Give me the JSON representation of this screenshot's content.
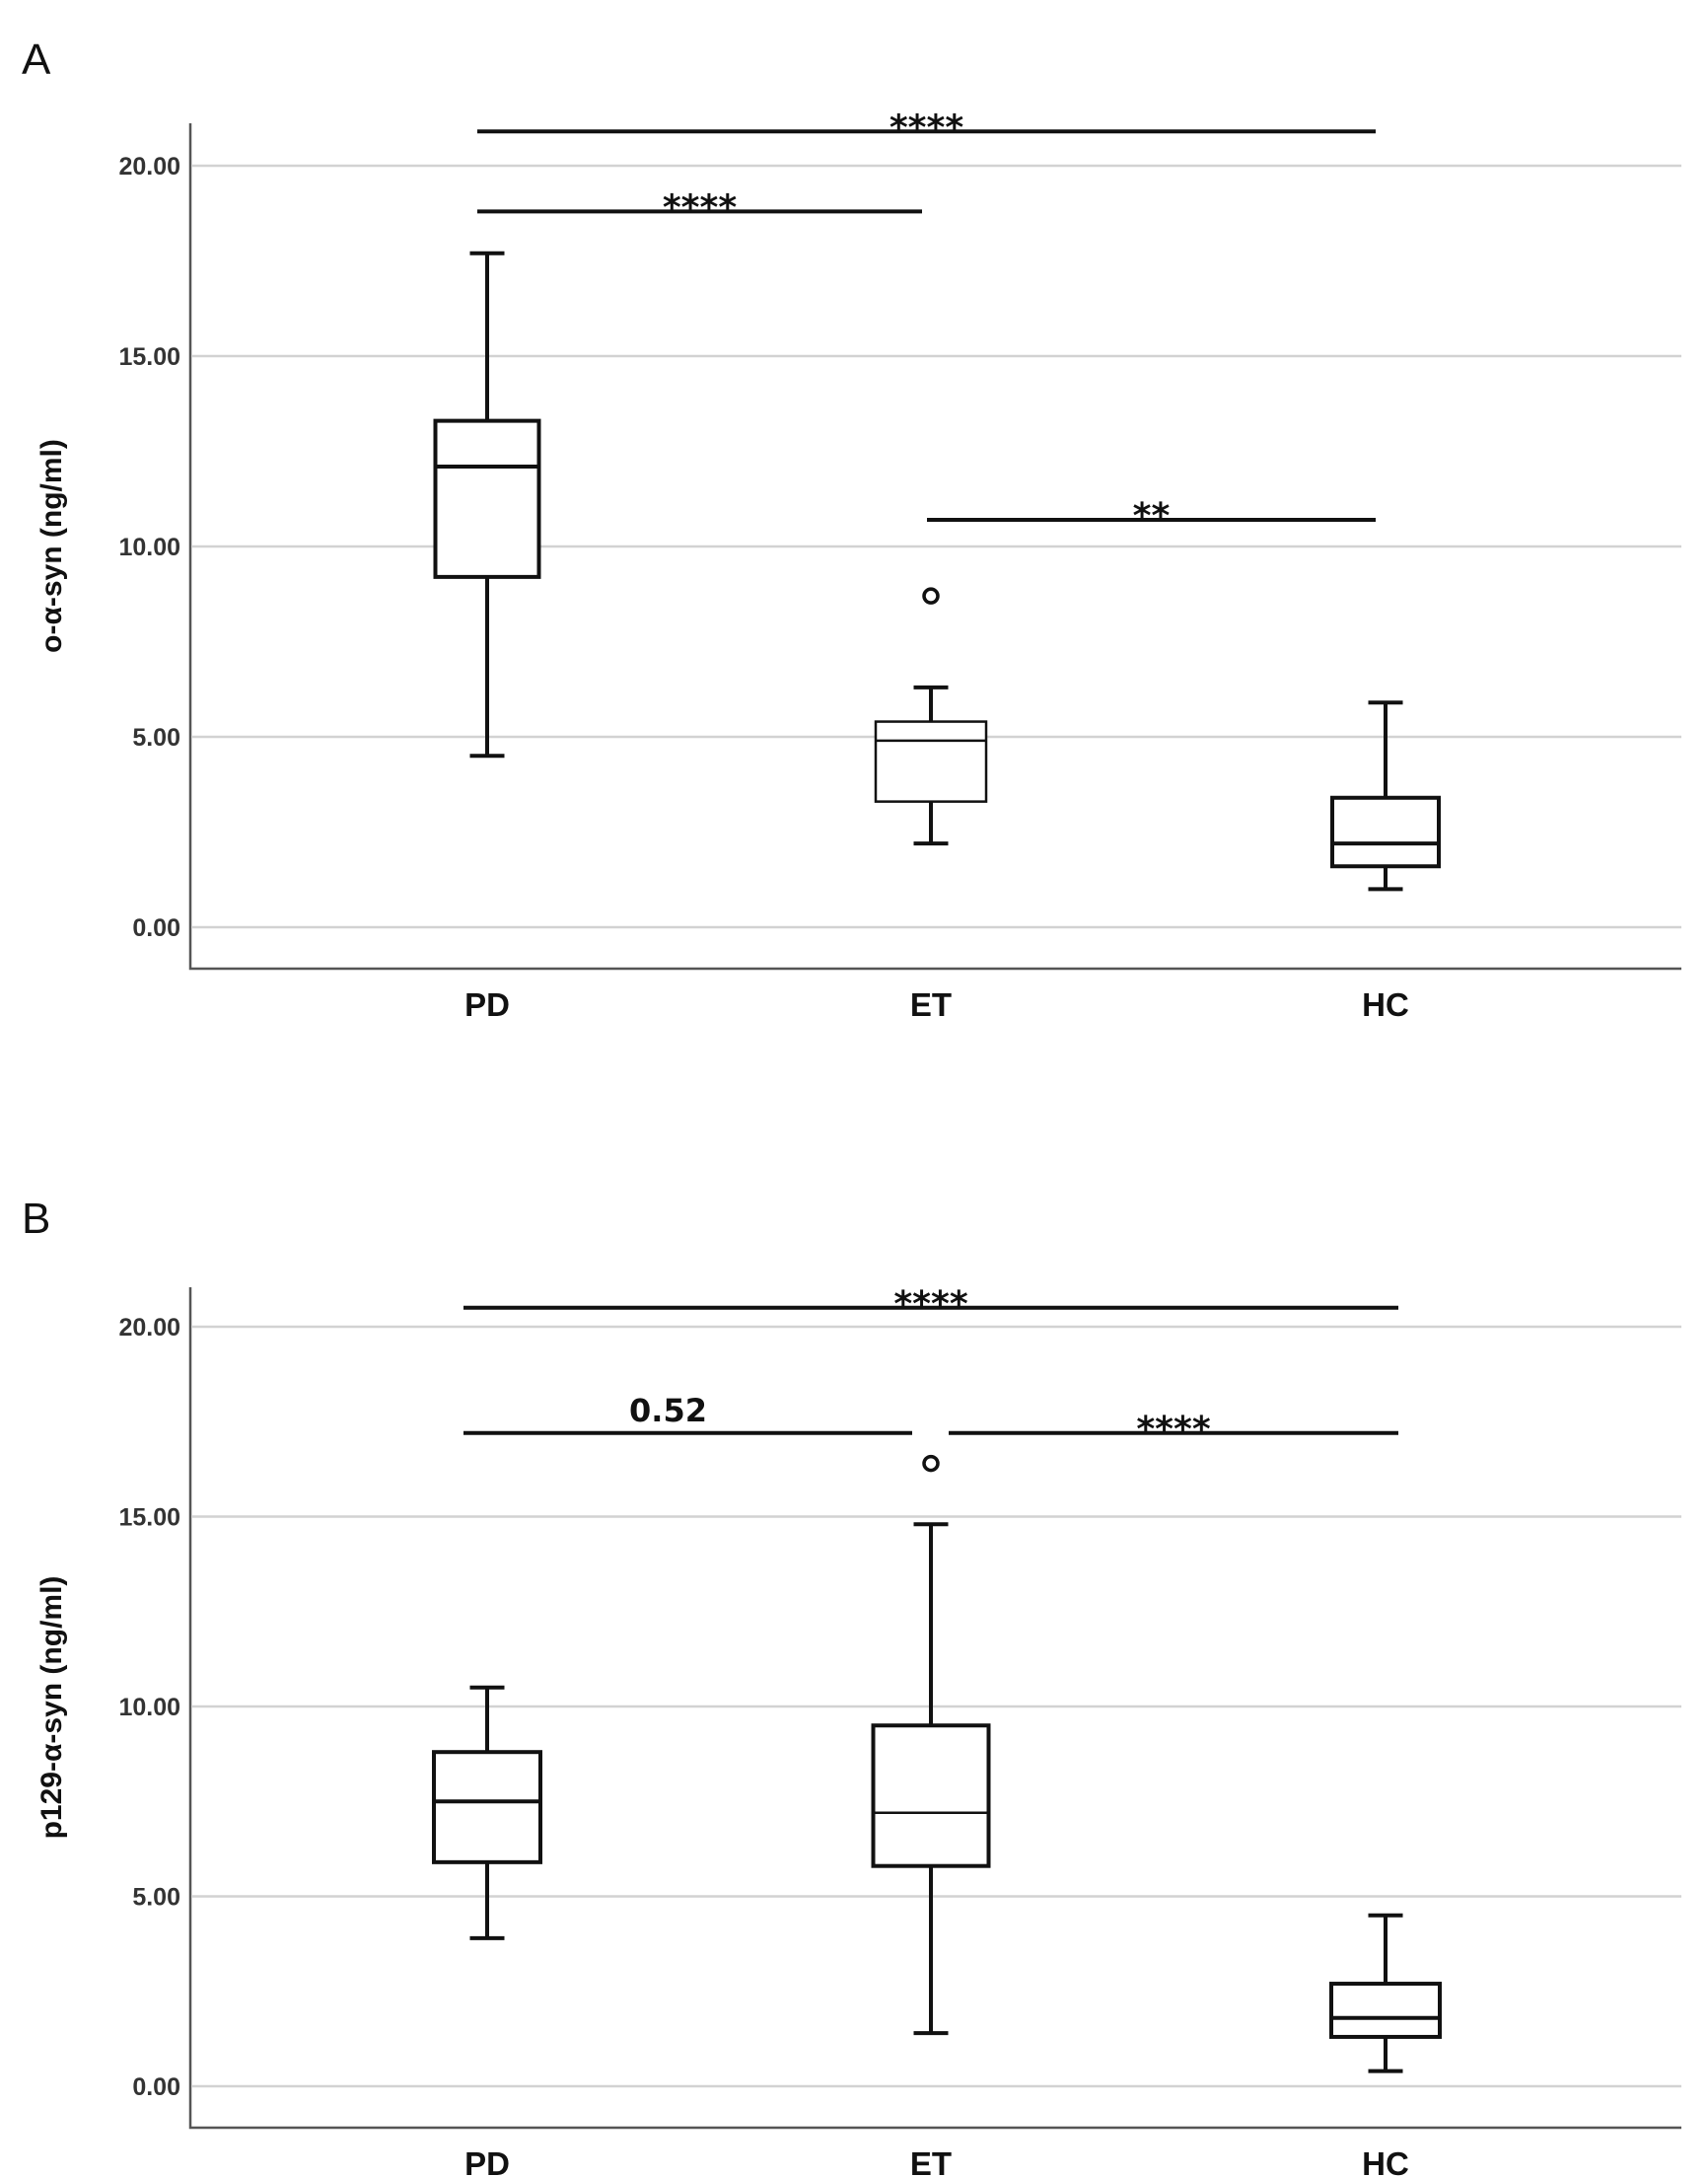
{
  "chart_data": [
    {
      "type": "box",
      "panel_label": "A",
      "ylabel": "o-α-syn (ng/ml)",
      "xlabel": "",
      "ylim": [
        -1.1,
        21
      ],
      "yticks": [
        "0.00",
        "5.00",
        "10.00",
        "15.00",
        "20.00"
      ],
      "ytick_values": [
        0,
        5,
        10,
        15,
        20
      ],
      "grid": true,
      "categories": [
        "PD",
        "ET",
        "HC"
      ],
      "boxes": [
        {
          "group": "PD",
          "whisker_low": 4.5,
          "q1": 9.2,
          "median": 12.1,
          "q3": 13.3,
          "whisker_high": 17.7,
          "outliers": []
        },
        {
          "group": "ET",
          "whisker_low": 2.2,
          "q1": 3.3,
          "median": 4.9,
          "q3": 5.4,
          "whisker_high": 6.3,
          "outliers": [
            8.7
          ]
        },
        {
          "group": "HC",
          "whisker_low": 1.0,
          "q1": 1.6,
          "median": 2.2,
          "q3": 3.4,
          "whisker_high": 5.9,
          "outliers": []
        }
      ],
      "significance": [
        {
          "label": "****",
          "from": "PD",
          "to": "HC",
          "y": 20.9
        },
        {
          "label": "****",
          "from": "PD",
          "to": "ET",
          "y": 18.8
        },
        {
          "label": "**",
          "from": "ET",
          "to": "HC",
          "y": 10.7
        }
      ]
    },
    {
      "type": "box",
      "panel_label": "B",
      "ylabel": "p129-α-syn (ng/ml)",
      "xlabel": "",
      "ylim": [
        -1.1,
        21
      ],
      "yticks": [
        "0.00",
        "5.00",
        "10.00",
        "15.00",
        "20.00"
      ],
      "ytick_values": [
        0,
        5,
        10,
        15,
        20
      ],
      "grid": true,
      "categories": [
        "PD",
        "ET",
        "HC"
      ],
      "boxes": [
        {
          "group": "PD",
          "whisker_low": 3.9,
          "q1": 5.9,
          "median": 7.5,
          "q3": 8.8,
          "whisker_high": 10.5,
          "outliers": []
        },
        {
          "group": "ET",
          "whisker_low": 1.4,
          "q1": 5.8,
          "median": 7.2,
          "q3": 9.5,
          "whisker_high": 14.8,
          "outliers": [
            16.4
          ]
        },
        {
          "group": "HC",
          "whisker_low": 0.4,
          "q1": 1.3,
          "median": 1.8,
          "q3": 2.7,
          "whisker_high": 4.5,
          "outliers": []
        }
      ],
      "significance": [
        {
          "label": "****",
          "from": "PD",
          "to": "HC",
          "y": 20.5
        },
        {
          "label": "0.52",
          "from": "PD",
          "to": "ET",
          "y": 17.2
        },
        {
          "label": "****",
          "from": "ET",
          "to": "HC",
          "y": 17.2
        }
      ]
    }
  ]
}
